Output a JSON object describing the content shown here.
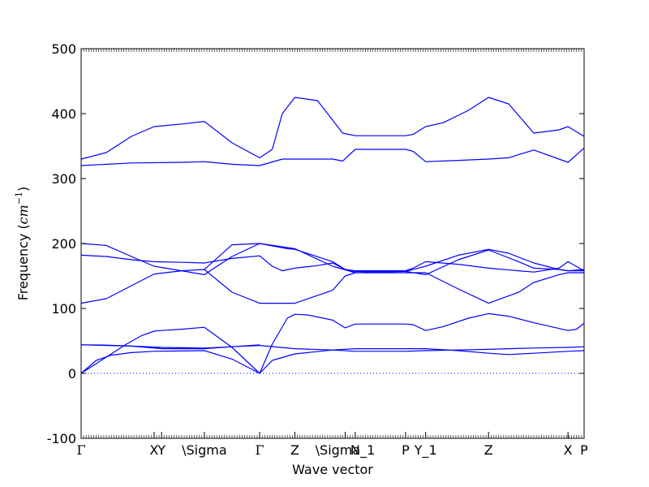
{
  "chart_data": {
    "type": "line",
    "title": "",
    "xlabel": "Wave vector",
    "ylabel": "Frequency ($cm^{-1}$)",
    "ylabel_parts": {
      "text": "Frequency (",
      "math_base": "cm",
      "math_sup": "−1",
      "close": ")"
    },
    "ylim": [
      -100,
      500
    ],
    "yticks": [
      -100,
      0,
      100,
      200,
      300,
      400,
      500
    ],
    "xlim": [
      0,
      1
    ],
    "grid": false,
    "zero_line": "dotted",
    "line_color": "#0000ff",
    "high_symmetry_points": [
      {
        "label": "Γ",
        "x": 0.0
      },
      {
        "label": "X",
        "x": 0.145
      },
      {
        "label": "Y",
        "x": 0.16
      },
      {
        "label": "\\Sigma",
        "x": 0.245
      },
      {
        "label": "Γ",
        "x": 0.355
      },
      {
        "label": "Z",
        "x": 0.425
      },
      {
        "label": "\\Sigma_1",
        "x": 0.525
      },
      {
        "label": "N",
        "x": 0.545
      },
      {
        "label": "P",
        "x": 0.645
      },
      {
        "label": "Y_1",
        "x": 0.685
      },
      {
        "label": "Z",
        "x": 0.81
      },
      {
        "label": "X",
        "x": 0.968
      },
      {
        "label": "P",
        "x": 1.0
      }
    ],
    "series": [
      {
        "x": [
          0,
          0.03,
          0.06,
          0.09,
          0.12,
          0.145,
          0.16,
          0.2,
          0.245,
          0.3,
          0.355
        ],
        "y": [
          0,
          15,
          30,
          45,
          58,
          65,
          66,
          68,
          71,
          40,
          0
        ]
      },
      {
        "x": [
          0,
          0.03,
          0.06,
          0.1,
          0.145,
          0.2,
          0.245,
          0.3,
          0.355
        ],
        "y": [
          0,
          20,
          28,
          32,
          34,
          34.5,
          35,
          22,
          0
        ]
      },
      {
        "x": [
          0,
          0.05,
          0.1,
          0.145,
          0.16,
          0.2,
          0.245,
          0.3,
          0.355
        ],
        "y": [
          44,
          43.5,
          42,
          40.5,
          40,
          39.5,
          39,
          41,
          43
        ]
      },
      {
        "x": [
          0,
          0.1,
          0.16,
          0.245,
          0.3,
          0.355
        ],
        "y": [
          44,
          42,
          38,
          38,
          41,
          44
        ]
      },
      {
        "x": [
          0.355,
          0.38,
          0.41,
          0.425,
          0.45,
          0.5,
          0.525,
          0.545,
          0.6,
          0.645,
          0.66,
          0.685,
          0.72,
          0.77,
          0.81,
          0.85,
          0.9,
          0.968,
          0.985,
          1.0
        ],
        "y": [
          0,
          45,
          85,
          91,
          90,
          82,
          70,
          76,
          76,
          76,
          75,
          66,
          72,
          85,
          92,
          88,
          78,
          66,
          68,
          77
        ]
      },
      {
        "x": [
          0.355,
          0.38,
          0.425,
          0.5,
          0.545,
          0.645,
          0.685,
          0.75,
          0.81,
          0.85,
          0.9,
          0.968,
          1.0
        ],
        "y": [
          0,
          20,
          30,
          36,
          38,
          38,
          38,
          35,
          31,
          29,
          31,
          34,
          35
        ]
      },
      {
        "x": [
          0.355,
          0.425,
          0.5,
          0.545,
          0.645,
          0.685,
          0.75,
          0.81,
          0.85,
          0.9,
          0.968,
          1.0
        ],
        "y": [
          43,
          38,
          36,
          34,
          34,
          35,
          36,
          37,
          38,
          39,
          40,
          41
        ]
      },
      {
        "x": [
          0,
          0.05,
          0.1,
          0.145,
          0.2,
          0.245,
          0.3,
          0.355,
          0.38,
          0.4,
          0.425,
          0.47,
          0.5,
          0.52,
          0.545,
          0.645,
          0.66,
          0.685,
          0.72,
          0.77,
          0.81,
          0.85,
          0.9,
          0.95,
          0.968,
          1.0
        ],
        "y": [
          330,
          340,
          365,
          380,
          384,
          388,
          355,
          332,
          345,
          400,
          425,
          420,
          390,
          370,
          366,
          366,
          368,
          380,
          386,
          405,
          425,
          415,
          370,
          375,
          380,
          365
        ]
      },
      {
        "x": [
          0,
          0.1,
          0.2,
          0.245,
          0.3,
          0.355,
          0.4,
          0.5,
          0.52,
          0.545,
          0.645,
          0.66,
          0.685,
          0.75,
          0.81,
          0.85,
          0.9,
          0.95,
          0.968,
          1.0
        ],
        "y": [
          320,
          324,
          325,
          326,
          322,
          320,
          330,
          330,
          327,
          345,
          345,
          342,
          326,
          328,
          330,
          332,
          344,
          330,
          325,
          347
        ]
      },
      {
        "x": [
          0,
          0.05,
          0.1,
          0.145,
          0.2,
          0.245,
          0.3,
          0.355,
          0.41,
          0.425,
          0.5,
          0.525,
          0.545,
          0.6,
          0.645,
          0.685,
          0.75,
          0.81,
          0.85,
          0.9,
          0.95,
          0.968,
          1.0
        ],
        "y": [
          200,
          197,
          180,
          165,
          158,
          152,
          180,
          200,
          192,
          191,
          172,
          160,
          157,
          157,
          157,
          165,
          182,
          191,
          185,
          170,
          160,
          158,
          158
        ]
      },
      {
        "x": [
          0,
          0.05,
          0.1,
          0.145,
          0.2,
          0.245,
          0.3,
          0.355,
          0.38,
          0.4,
          0.425,
          0.47,
          0.5,
          0.525,
          0.545,
          0.6,
          0.645,
          0.66,
          0.685,
          0.75,
          0.81,
          0.87,
          0.9,
          0.95,
          0.968,
          1.0
        ],
        "y": [
          182,
          180,
          175,
          172,
          171,
          170,
          177,
          181,
          165,
          158,
          162,
          166,
          170,
          160,
          158,
          158,
          158,
          162,
          172,
          168,
          162,
          158,
          156,
          162,
          172,
          158
        ]
      },
      {
        "x": [
          0,
          0.05,
          0.1,
          0.145,
          0.2,
          0.245,
          0.3,
          0.355,
          0.425,
          0.5,
          0.525,
          0.545,
          0.645,
          0.685,
          0.75,
          0.81,
          0.87,
          0.9,
          0.95,
          0.968,
          1.0
        ],
        "y": [
          108,
          115,
          135,
          153,
          158,
          160,
          125,
          108,
          108,
          128,
          150,
          155,
          155,
          155,
          130,
          108,
          125,
          140,
          152,
          155,
          155
        ]
      },
      {
        "x": [
          0.245,
          0.3,
          0.355,
          0.425,
          0.5,
          0.545,
          0.645,
          0.685,
          0.75,
          0.81,
          0.87,
          0.9,
          0.95,
          0.968,
          1.0
        ],
        "y": [
          160,
          198,
          200,
          192,
          165,
          155,
          157,
          152,
          175,
          190,
          172,
          162,
          160,
          158,
          160
        ]
      }
    ]
  }
}
